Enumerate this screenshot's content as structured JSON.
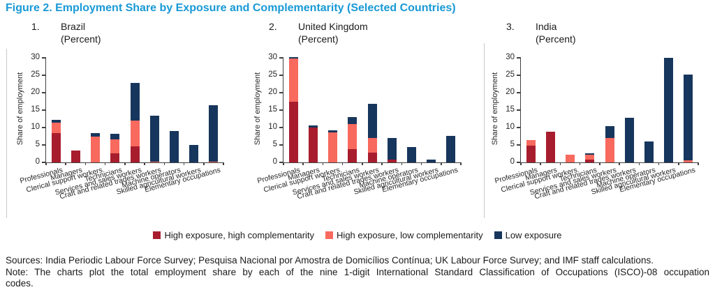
{
  "title": "Figure 2. Employment Share by Exposure and Complementarity (Selected Countries)",
  "colors": {
    "title_blue": "#1899D6",
    "high_high": "#A81D2E",
    "high_low": "#F8695E",
    "low_exposure": "#17365D"
  },
  "legend": [
    {
      "label": "High exposure, high complementarity",
      "color": "#A81D2E"
    },
    {
      "label": "High exposure, low complementarity",
      "color": "#F8695E"
    },
    {
      "label": "Low exposure",
      "color": "#17365D"
    }
  ],
  "footer": {
    "sources": "Sources: India Periodic Labour Force Survey; Pesquisa Nacional por Amostra de Domicílios Contínua; UK Labour Force Survey; and IMF staff calculations.",
    "note_lines": [
      "Note: The charts plot the total employment share by each of the nine 1-digit International Standard Classification of Occupations (ISCO)-08 occupation",
      "codes."
    ]
  },
  "chart_data": [
    {
      "type": "bar",
      "stacked": true,
      "number": "1.",
      "title": "Brazil",
      "subtitle": "(Percent)",
      "ylabel": "Share of employment",
      "ylim": [
        0,
        30
      ],
      "yticks": [
        0,
        5,
        10,
        15,
        20,
        25,
        30
      ],
      "grid": false,
      "categories": [
        "Professionals",
        "Managers",
        "Clerical support workers",
        "Technicians",
        "Services and sales workers",
        "Craft and related trades workers",
        "Machine operators",
        "Skilled agricultural workers",
        "Elementary occupations"
      ],
      "series": [
        {
          "name": "High exposure, high complementarity",
          "values": [
            8.5,
            3.4,
            0,
            2.7,
            4.7,
            0,
            0,
            0,
            0
          ]
        },
        {
          "name": "High exposure, low complementarity",
          "values": [
            3.0,
            0,
            7.4,
            3.9,
            7.3,
            0.3,
            0,
            0,
            0.3
          ]
        },
        {
          "name": "Low exposure",
          "values": [
            0.7,
            0,
            1.1,
            1.7,
            10.9,
            13.1,
            9.0,
            5.0,
            16.1
          ]
        }
      ]
    },
    {
      "type": "bar",
      "stacked": true,
      "number": "2.",
      "title": "United Kingdom",
      "subtitle": "(Percent)",
      "ylabel": "Share of employment",
      "ylim": [
        0,
        30
      ],
      "yticks": [
        0,
        5,
        10,
        15,
        20,
        25,
        30
      ],
      "grid": false,
      "categories": [
        "Professionals",
        "Managers",
        "Clerical support workers",
        "Technicians",
        "Services and sales workers",
        "Craft and related trades workers",
        "Machine operators",
        "Skilled agricultural workers",
        "Elementary occupations"
      ],
      "series": [
        {
          "name": "High exposure, high complementarity",
          "values": [
            17.4,
            10.0,
            0,
            3.9,
            2.9,
            0.9,
            0,
            0,
            0
          ]
        },
        {
          "name": "High exposure, low complementarity",
          "values": [
            12.5,
            0,
            8.7,
            7.1,
            4.1,
            0,
            0,
            0,
            0
          ]
        },
        {
          "name": "Low exposure",
          "values": [
            0.3,
            0.7,
            0.6,
            2.1,
            9.8,
            6.1,
            4.5,
            0.9,
            7.6
          ]
        }
      ]
    },
    {
      "type": "bar",
      "stacked": true,
      "number": "3.",
      "title": "India",
      "subtitle": "(Percent)",
      "ylabel": "Share of employment",
      "ylim": [
        0,
        30
      ],
      "yticks": [
        0,
        5,
        10,
        15,
        20,
        25,
        30
      ],
      "grid": false,
      "categories": [
        "Professionals",
        "Managers",
        "Clerical support workers",
        "Technicians",
        "Services and sales workers",
        "Craft and related trades workers",
        "Machine operators",
        "Skilled agricultural workers",
        "Elementary occupations"
      ],
      "series": [
        {
          "name": "High exposure, high complementarity",
          "values": [
            4.8,
            8.9,
            0,
            0.8,
            0,
            0,
            0,
            0,
            0
          ]
        },
        {
          "name": "High exposure, low complementarity",
          "values": [
            1.7,
            0,
            2.3,
            1.4,
            7.0,
            0,
            0,
            0,
            0.7
          ]
        },
        {
          "name": "Low exposure",
          "values": [
            0,
            0,
            0,
            0.4,
            3.4,
            12.8,
            6.1,
            30.0,
            24.6
          ]
        }
      ]
    }
  ]
}
